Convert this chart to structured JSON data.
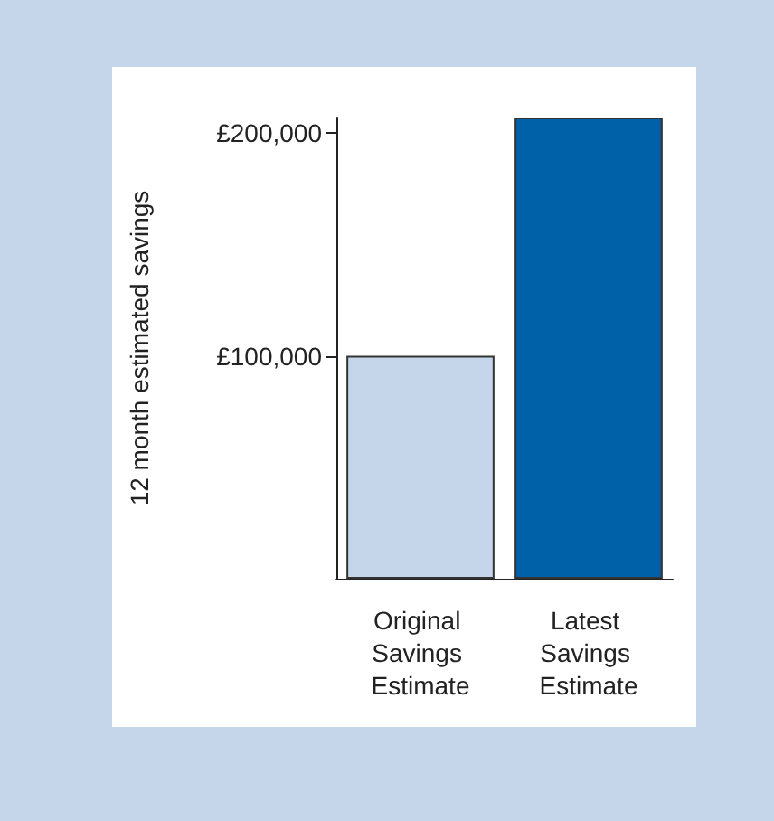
{
  "chart_data": {
    "type": "bar",
    "ylabel": "12 month estimated savings",
    "categories": [
      "Original Savings Estimate",
      "Latest Savings Estimate"
    ],
    "values": [
      100000,
      207000
    ],
    "colors": [
      "#c5d5ea",
      "#0060a8"
    ],
    "ylim": [
      0,
      207000
    ],
    "yticks": [
      {
        "value": 100000,
        "label": "£100,000"
      },
      {
        "value": 200000,
        "label": "£200,000"
      }
    ],
    "grid": false
  }
}
